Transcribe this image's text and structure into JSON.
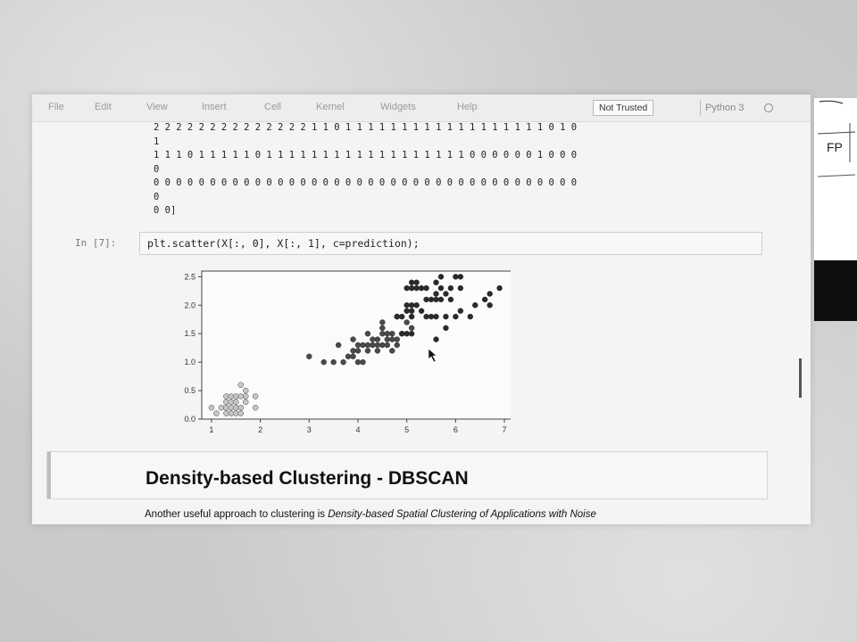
{
  "menubar": {
    "items": [
      "File",
      "Edit",
      "View",
      "Insert",
      "Cell",
      "Kernel",
      "Widgets",
      "Help"
    ],
    "trust_badge": "Not Trusted",
    "kernel_name": "Python 3"
  },
  "output_lines": [
    "2 2 2 2 2 2 2 2 2 2 2 2 2 2 1 1 0 1 1 1 1 1 1 1 1 1 1 1 1 1 1 1 1 1 1 0 1 0",
    "1",
    "1 1 1 0 1 1 1 1 1 0 1 1 1 1 1 1 1 1 1 1 1 1 1 1 1 1 1 1 0 0 0 0 0 0 1 0 0 0",
    "0",
    "0 0 0 0 0 0 0 0 0 0 0 0 0 0 0 0 0 0 0 0 0 0 0 0 0 0 0 0 0 0 0 0 0 0 0 0 0 0",
    "0",
    "0 0]"
  ],
  "cell": {
    "prompt": "In [7]:",
    "code": "plt.scatter(X[:, 0], X[:, 1], c=prediction);"
  },
  "markdown": {
    "heading": "Density-based Clustering - DBSCAN",
    "text_plain": "Another useful approach to clustering is ",
    "text_italic": "Density-based Spatial Clustering of Applications with Noise"
  },
  "right_photo": {
    "text_1": "FP"
  },
  "chart_data": {
    "type": "scatter",
    "xlim": [
      0.8,
      7.2
    ],
    "ylim": [
      0.0,
      2.6
    ],
    "xticks": [
      1,
      2,
      3,
      4,
      5,
      6,
      7
    ],
    "yticks": [
      0.0,
      0.5,
      1.0,
      1.5,
      2.0,
      2.5
    ],
    "colors": {
      "0": "#c6c6c6",
      "1": "#4a4a4a",
      "2": "#2a2a2a"
    },
    "series": [
      {
        "points": [
          [
            1.0,
            0.2
          ],
          [
            1.1,
            0.1
          ],
          [
            1.2,
            0.2
          ],
          [
            1.3,
            0.2
          ],
          [
            1.3,
            0.3
          ],
          [
            1.3,
            0.4
          ],
          [
            1.4,
            0.2
          ],
          [
            1.4,
            0.1
          ],
          [
            1.4,
            0.3
          ],
          [
            1.5,
            0.2
          ],
          [
            1.5,
            0.1
          ],
          [
            1.5,
            0.4
          ],
          [
            1.6,
            0.2
          ],
          [
            1.6,
            0.6
          ],
          [
            1.7,
            0.4
          ],
          [
            1.7,
            0.3
          ],
          [
            1.7,
            0.5
          ],
          [
            1.9,
            0.2
          ],
          [
            1.9,
            0.4
          ],
          [
            1.5,
            0.3
          ],
          [
            1.6,
            0.1
          ],
          [
            1.4,
            0.4
          ],
          [
            1.3,
            0.1
          ],
          [
            1.6,
            0.4
          ]
        ]
      },
      {
        "points": [
          [
            3.0,
            1.1
          ],
          [
            3.3,
            1.0
          ],
          [
            3.5,
            1.0
          ],
          [
            3.6,
            1.3
          ],
          [
            3.7,
            1.0
          ],
          [
            3.8,
            1.1
          ],
          [
            3.9,
            1.1
          ],
          [
            3.9,
            1.2
          ],
          [
            3.9,
            1.4
          ],
          [
            4.0,
            1.0
          ],
          [
            4.0,
            1.2
          ],
          [
            4.0,
            1.3
          ],
          [
            4.1,
            1.0
          ],
          [
            4.1,
            1.3
          ],
          [
            4.2,
            1.2
          ],
          [
            4.2,
            1.3
          ],
          [
            4.2,
            1.5
          ],
          [
            4.3,
            1.3
          ],
          [
            4.4,
            1.2
          ],
          [
            4.4,
            1.3
          ],
          [
            4.4,
            1.4
          ],
          [
            4.5,
            1.3
          ],
          [
            4.5,
            1.5
          ],
          [
            4.5,
            1.7
          ],
          [
            4.6,
            1.3
          ],
          [
            4.6,
            1.4
          ],
          [
            4.6,
            1.5
          ],
          [
            4.7,
            1.2
          ],
          [
            4.7,
            1.4
          ],
          [
            4.7,
            1.5
          ],
          [
            4.8,
            1.4
          ],
          [
            4.8,
            1.8
          ],
          [
            4.9,
            1.5
          ],
          [
            5.0,
            1.7
          ],
          [
            5.1,
            1.6
          ],
          [
            4.5,
            1.6
          ],
          [
            4.8,
            1.3
          ],
          [
            4.3,
            1.4
          ]
        ]
      },
      {
        "points": [
          [
            4.8,
            1.8
          ],
          [
            4.9,
            1.8
          ],
          [
            5.0,
            1.5
          ],
          [
            5.0,
            1.9
          ],
          [
            5.0,
            2.0
          ],
          [
            5.1,
            1.5
          ],
          [
            5.1,
            1.8
          ],
          [
            5.1,
            1.9
          ],
          [
            5.1,
            2.0
          ],
          [
            5.1,
            2.3
          ],
          [
            5.1,
            2.4
          ],
          [
            5.2,
            2.0
          ],
          [
            5.2,
            2.3
          ],
          [
            5.3,
            1.9
          ],
          [
            5.3,
            2.3
          ],
          [
            5.4,
            2.1
          ],
          [
            5.4,
            2.3
          ],
          [
            5.5,
            1.8
          ],
          [
            5.5,
            2.1
          ],
          [
            5.6,
            1.4
          ],
          [
            5.6,
            1.8
          ],
          [
            5.6,
            2.1
          ],
          [
            5.6,
            2.2
          ],
          [
            5.6,
            2.4
          ],
          [
            5.7,
            2.1
          ],
          [
            5.7,
            2.3
          ],
          [
            5.7,
            2.5
          ],
          [
            5.8,
            1.6
          ],
          [
            5.8,
            1.8
          ],
          [
            5.8,
            2.2
          ],
          [
            5.9,
            2.1
          ],
          [
            5.9,
            2.3
          ],
          [
            6.0,
            1.8
          ],
          [
            6.0,
            2.5
          ],
          [
            6.1,
            1.9
          ],
          [
            6.1,
            2.3
          ],
          [
            6.1,
            2.5
          ],
          [
            6.3,
            1.8
          ],
          [
            6.4,
            2.0
          ],
          [
            6.6,
            2.1
          ],
          [
            6.7,
            2.0
          ],
          [
            6.7,
            2.2
          ],
          [
            6.9,
            2.3
          ],
          [
            5.2,
            2.4
          ],
          [
            5.0,
            2.3
          ],
          [
            5.4,
            1.8
          ],
          [
            4.9,
            1.5
          ]
        ]
      }
    ]
  }
}
